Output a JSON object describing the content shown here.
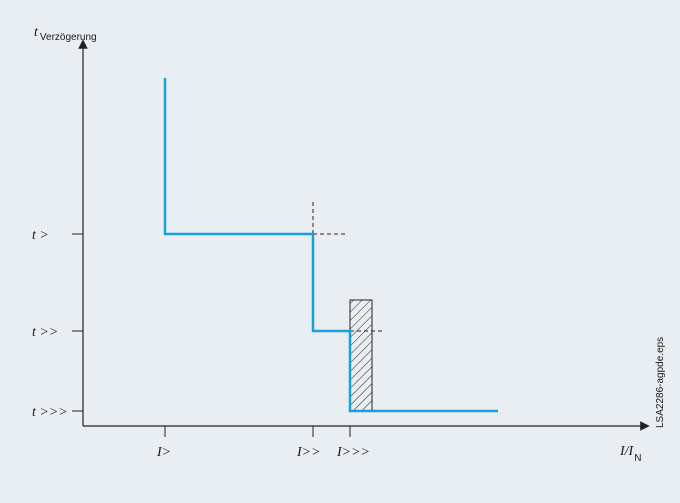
{
  "axes": {
    "y_label_main": "t",
    "y_label_sub": "Verzögerung",
    "x_label_main": "I/I",
    "x_label_sub": "N"
  },
  "y_ticks": [
    "t >",
    "t >>",
    "t >>>"
  ],
  "x_ticks": [
    "I>",
    "I>>",
    "I>>>"
  ],
  "side_label": "LSA2286-agpde.eps",
  "colors": {
    "curve": "#1aa0d8",
    "axis": "#222222",
    "background": "#e9eef2"
  }
}
